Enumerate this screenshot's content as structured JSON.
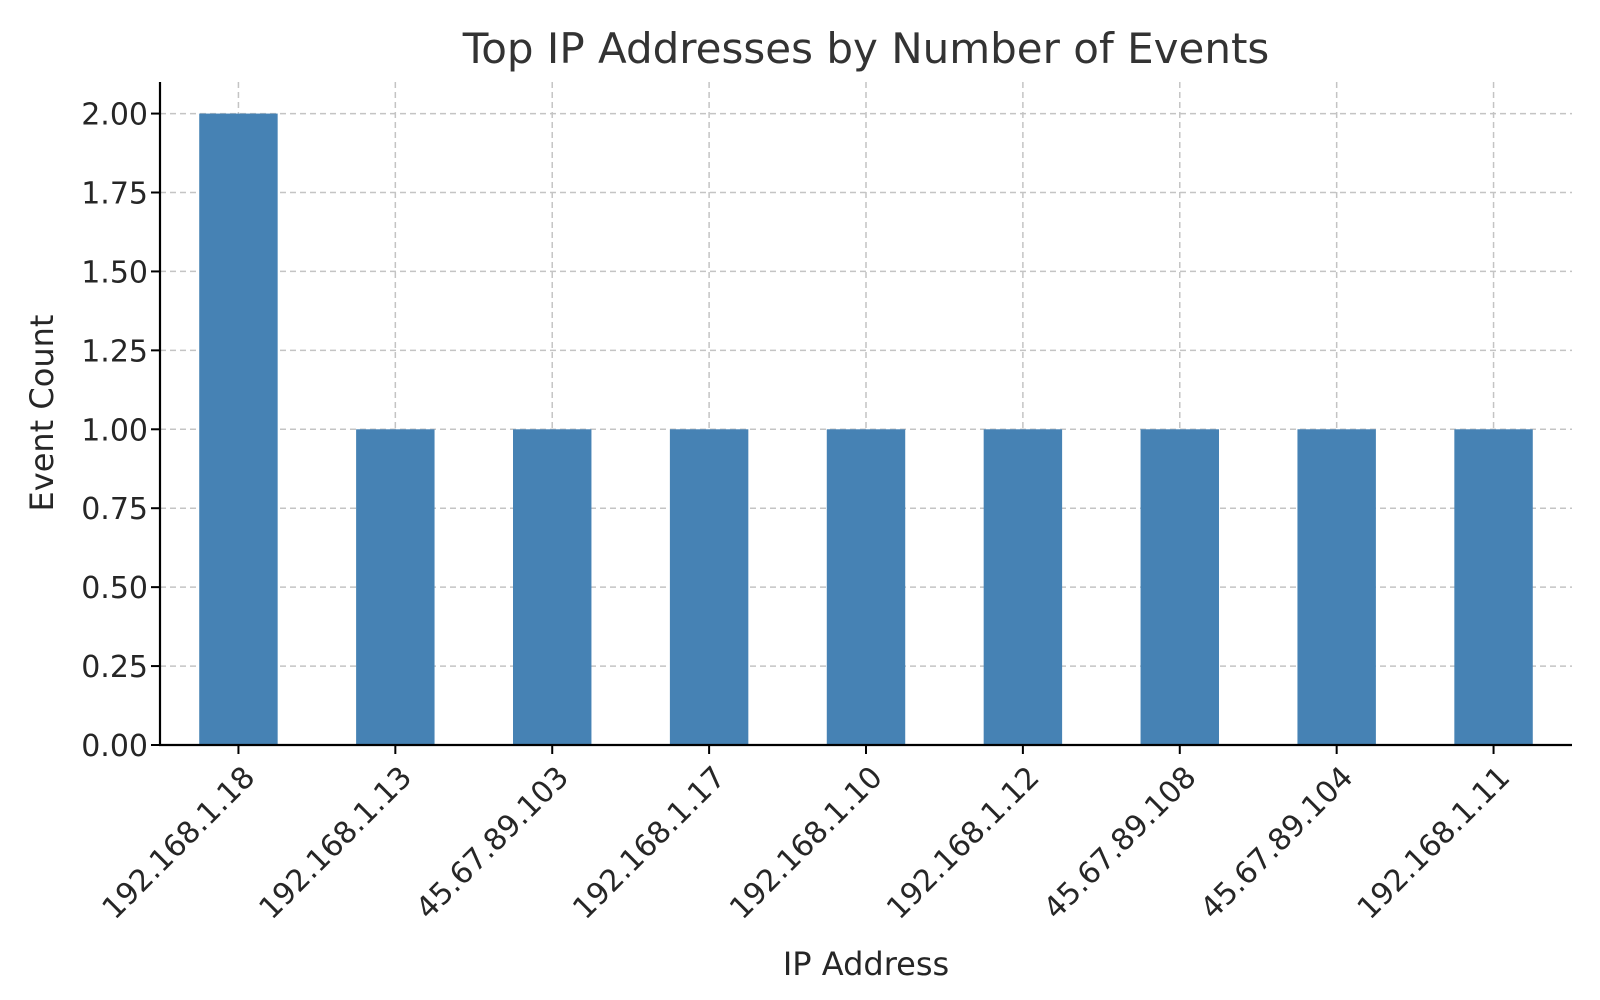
{
  "chart_data": {
    "type": "bar",
    "title": "Top IP Addresses by Number of Events",
    "xlabel": "IP Address",
    "ylabel": "Event Count",
    "categories": [
      "192.168.1.18",
      "192.168.1.13",
      "45.67.89.103",
      "192.168.1.17",
      "192.168.1.10",
      "192.168.1.12",
      "45.67.89.108",
      "45.67.89.104",
      "192.168.1.11"
    ],
    "values": [
      2,
      1,
      1,
      1,
      1,
      1,
      1,
      1,
      1
    ],
    "ylim": [
      0,
      2.1
    ],
    "yticks": [
      "0.00",
      "0.25",
      "0.50",
      "0.75",
      "1.00",
      "1.25",
      "1.50",
      "1.75",
      "2.00"
    ],
    "grid": true,
    "bar_color": "#4682b4"
  }
}
